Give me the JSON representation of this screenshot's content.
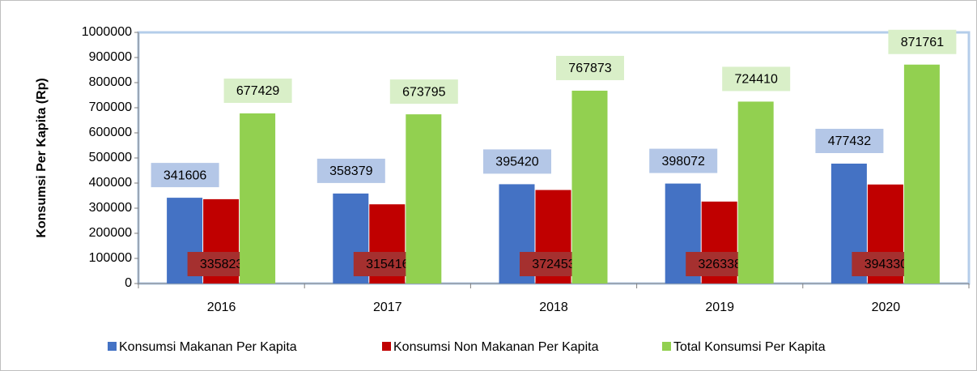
{
  "chart_data": {
    "type": "bar",
    "y_label": "Konsumsi Per Kapita (Rp)",
    "categories": [
      "2016",
      "2017",
      "2018",
      "2019",
      "2020"
    ],
    "series": [
      {
        "name": "Konsumsi Makanan Per Kapita",
        "color": "#4472c4",
        "values": [
          341606,
          358379,
          395420,
          398072,
          477432
        ]
      },
      {
        "name": "Konsumsi Non Makanan Per Kapita",
        "color": "#c00000",
        "values": [
          335823,
          315416,
          372453,
          326338,
          394330
        ]
      },
      {
        "name": "Total Konsumsi Per Kapita",
        "color": "#92d050",
        "values": [
          677429,
          673795,
          767873,
          724410,
          871761
        ]
      }
    ],
    "ylim": [
      0,
      1000000
    ],
    "yticks": [
      0,
      100000,
      200000,
      300000,
      400000,
      500000,
      600000,
      700000,
      800000,
      900000,
      1000000
    ],
    "legend": "bottom"
  }
}
